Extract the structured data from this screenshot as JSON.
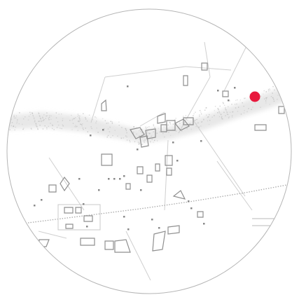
{
  "map": {
    "style": "monochrome-sketch",
    "frame_shape": "circle",
    "background": "#ffffff",
    "frame_color": "#b5b5b5",
    "line_color": "#c4c4c4",
    "building_color": "#8f8f8f",
    "marker": {
      "icon": "location-dot-icon",
      "color": "#e8193d"
    }
  }
}
